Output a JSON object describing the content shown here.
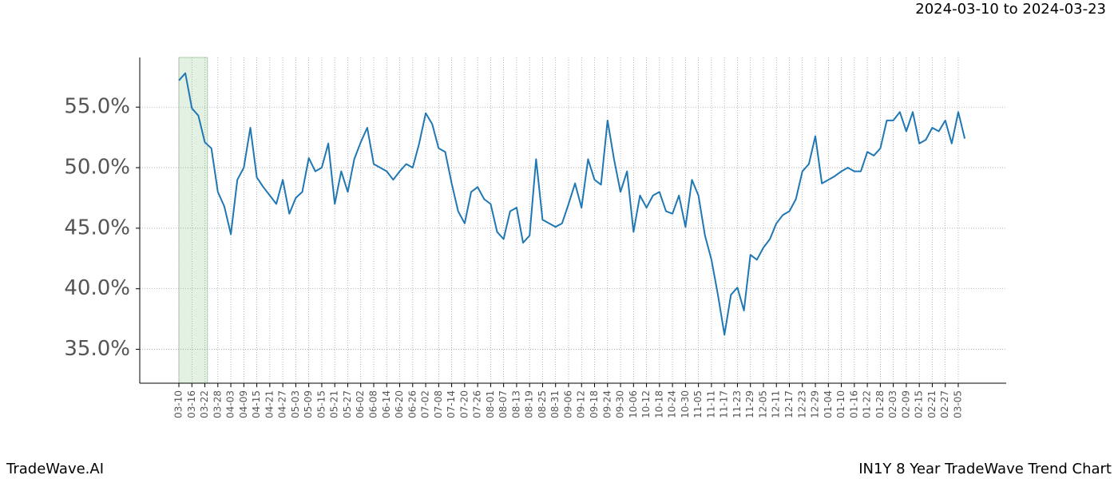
{
  "chart_data": {
    "type": "line",
    "title": "2024-03-10 to 2024-03-23",
    "footer_left": "TradeWave.AI",
    "footer_right": "IN1Y 8 Year TradeWave Trend Chart",
    "categories": [
      "03-10",
      null,
      "03-16",
      null,
      "03-22",
      null,
      "03-28",
      null,
      "04-03",
      null,
      "04-09",
      null,
      "04-15",
      null,
      "04-21",
      null,
      "04-27",
      null,
      "05-03",
      null,
      "05-09",
      null,
      "05-15",
      null,
      "05-21",
      null,
      "05-27",
      null,
      "06-02",
      null,
      "06-08",
      null,
      "06-14",
      null,
      "06-20",
      null,
      "06-26",
      null,
      "07-02",
      null,
      "07-08",
      null,
      "07-14",
      null,
      "07-20",
      null,
      "07-26",
      null,
      "08-01",
      null,
      "08-07",
      null,
      "08-13",
      null,
      "08-19",
      null,
      "08-25",
      null,
      "08-31",
      null,
      "09-06",
      null,
      "09-12",
      null,
      "09-18",
      null,
      "09-24",
      null,
      "09-30",
      null,
      "10-06",
      null,
      "10-12",
      null,
      "10-18",
      null,
      "10-24",
      null,
      "10-30",
      null,
      "11-05",
      null,
      "11-11",
      null,
      "11-17",
      null,
      "11-23",
      null,
      "11-29",
      null,
      "12-05",
      null,
      "12-11",
      null,
      "12-17",
      null,
      "12-23",
      null,
      "12-29",
      null,
      "01-04",
      null,
      "01-10",
      null,
      "01-16",
      null,
      "01-22",
      null,
      "01-28",
      null,
      "02-03",
      null,
      "02-09",
      null,
      "02-15",
      null,
      "02-21",
      null,
      "02-27",
      null,
      "03-05",
      null
    ],
    "values": [
      57.2,
      57.8,
      54.9,
      54.3,
      52.1,
      51.6,
      48.0,
      46.8,
      44.5,
      49.0,
      50.0,
      53.3,
      49.2,
      48.4,
      47.7,
      47.0,
      49.0,
      46.2,
      47.5,
      48.0,
      50.8,
      49.7,
      50.0,
      52.0,
      47.0,
      49.7,
      48.0,
      50.7,
      52.1,
      53.3,
      50.3,
      50.0,
      49.7,
      49.0,
      49.7,
      50.3,
      50.0,
      52.0,
      54.5,
      53.6,
      51.6,
      51.3,
      48.7,
      46.4,
      45.4,
      48.0,
      48.4,
      47.4,
      47.0,
      44.7,
      44.1,
      46.4,
      46.7,
      43.8,
      44.4,
      50.7,
      45.7,
      45.4,
      45.1,
      45.4,
      47.0,
      48.7,
      46.7,
      50.7,
      49.0,
      48.6,
      53.9,
      50.7,
      48.0,
      49.7,
      44.7,
      47.7,
      46.7,
      47.7,
      48.0,
      46.4,
      46.2,
      47.7,
      45.1,
      49.0,
      47.7,
      44.4,
      42.4,
      39.5,
      36.2,
      39.5,
      40.1,
      38.2,
      42.8,
      42.4,
      43.4,
      44.1,
      45.4,
      46.1,
      46.4,
      47.4,
      49.7,
      50.3,
      52.6,
      48.7,
      49.0,
      49.3,
      49.7,
      50.0,
      49.7,
      49.7,
      51.3,
      51.0,
      51.6,
      53.9,
      53.9,
      54.6,
      53.0,
      54.6,
      52.0,
      52.3,
      53.3,
      53.0,
      53.9,
      52.0,
      54.6,
      52.4
    ],
    "color": "#1f77b4",
    "ylim": [
      32.2,
      59.1
    ],
    "yticks": [
      {
        "value": 35,
        "label": "35.0%"
      },
      {
        "value": 40,
        "label": "40.0%"
      },
      {
        "value": 45,
        "label": "45.0%"
      },
      {
        "value": 50,
        "label": "50.0%"
      },
      {
        "value": 55,
        "label": "55.0%"
      }
    ],
    "grid": true
  }
}
